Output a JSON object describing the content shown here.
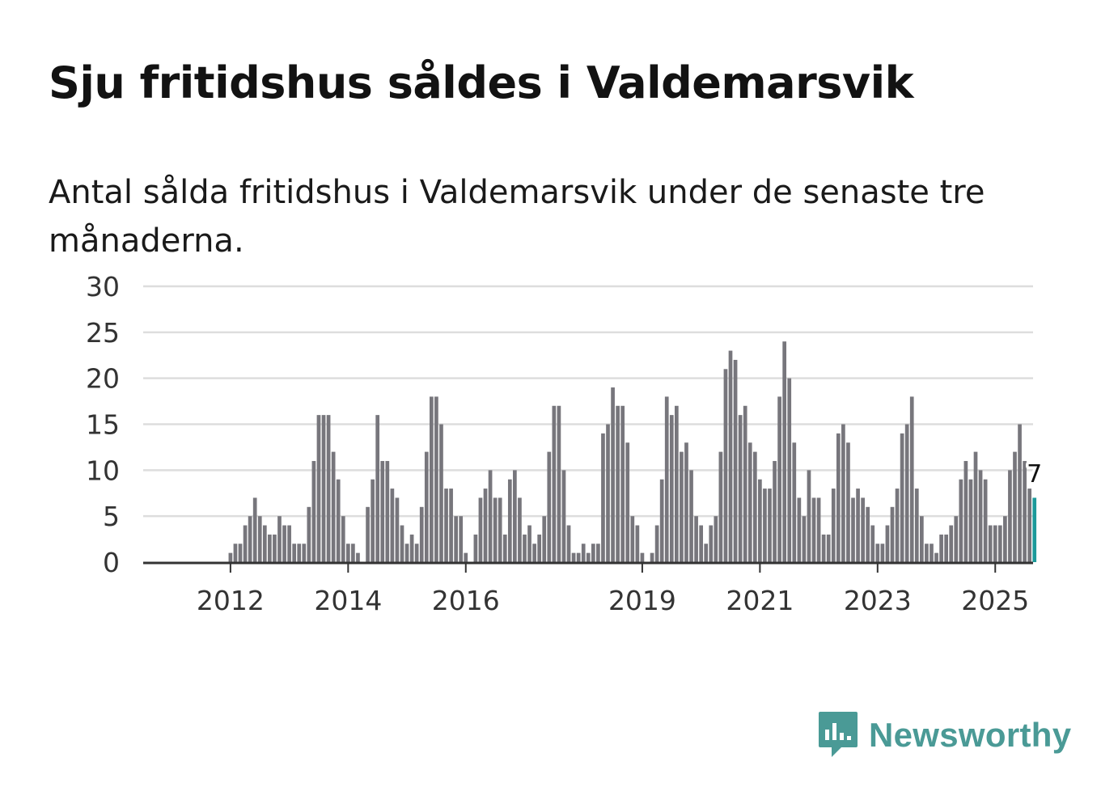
{
  "title": "Sju fritidshus såldes i Valdemarsvik",
  "subtitle": "Antal sålda fritidshus i Valdemarsvik under de senaste tre månaderna.",
  "brand": {
    "name": "Newsworthy",
    "icon": "newsworthy-logo-icon",
    "color": "#4a9a96"
  },
  "colors": {
    "bar": "#77767c",
    "highlight": "#1c9a9a",
    "grid": "#dddddd",
    "axis": "#333333"
  },
  "chart_data": {
    "type": "bar",
    "title": "Sju fritidshus såldes i Valdemarsvik",
    "xlabel": "",
    "ylabel": "",
    "ylim": [
      0,
      30
    ],
    "yticks": [
      0,
      5,
      10,
      15,
      20,
      25,
      30
    ],
    "xticks": [
      {
        "label": "2012",
        "index": 9
      },
      {
        "label": "2014",
        "index": 33
      },
      {
        "label": "2016",
        "index": 57
      },
      {
        "label": "2019",
        "index": 93
      },
      {
        "label": "2021",
        "index": 117
      },
      {
        "label": "2023",
        "index": 141
      },
      {
        "label": "2025",
        "index": 165
      }
    ],
    "series": [
      {
        "name": "Antal sålda fritidshus",
        "values": [
          0,
          0,
          0,
          0,
          0,
          0,
          0,
          0,
          0,
          1,
          2,
          2,
          4,
          5,
          7,
          5,
          4,
          3,
          3,
          5,
          4,
          4,
          2,
          2,
          2,
          6,
          11,
          16,
          16,
          16,
          12,
          9,
          5,
          2,
          2,
          1,
          0,
          6,
          9,
          16,
          11,
          11,
          8,
          7,
          4,
          2,
          3,
          2,
          6,
          12,
          18,
          18,
          15,
          8,
          8,
          5,
          5,
          1,
          0,
          3,
          7,
          8,
          10,
          7,
          7,
          3,
          9,
          10,
          7,
          3,
          4,
          2,
          3,
          5,
          12,
          17,
          17,
          10,
          4,
          1,
          1,
          2,
          1,
          2,
          2,
          14,
          15,
          19,
          17,
          17,
          13,
          5,
          4,
          1,
          0,
          1,
          4,
          9,
          18,
          16,
          17,
          12,
          13,
          10,
          5,
          4,
          2,
          4,
          5,
          12,
          21,
          23,
          22,
          16,
          17,
          13,
          12,
          9,
          8,
          8,
          11,
          18,
          24,
          20,
          13,
          7,
          5,
          10,
          7,
          7,
          3,
          3,
          8,
          14,
          15,
          13,
          7,
          8,
          7,
          6,
          4,
          2,
          2,
          4,
          6,
          8,
          14,
          15,
          18,
          8,
          5,
          2,
          2,
          1,
          3,
          3,
          4,
          5,
          9,
          11,
          9,
          12,
          10,
          9,
          4,
          4,
          4,
          5,
          10,
          12,
          15,
          11,
          8,
          7
        ]
      }
    ],
    "highlight": {
      "index": 173,
      "value": 7,
      "label": "7"
    }
  }
}
